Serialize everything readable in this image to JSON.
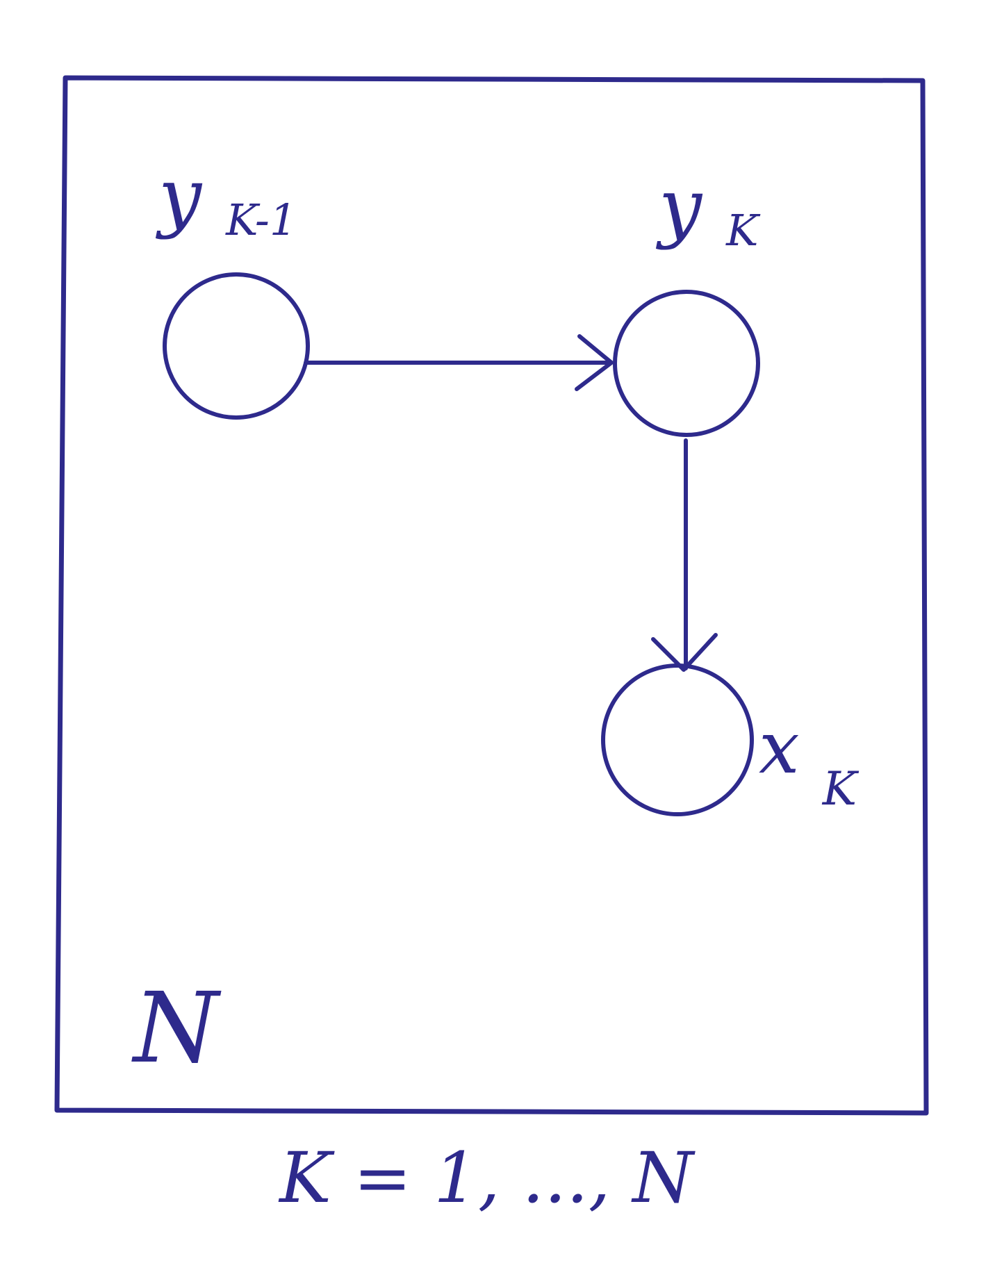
{
  "colors": {
    "ink": "#2e2a8c",
    "background": "#ffffff"
  },
  "nodes": [
    {
      "id": "y_prev",
      "label_main": "y",
      "label_sub": "K-1"
    },
    {
      "id": "y_k",
      "label_main": "y",
      "label_sub": "K"
    },
    {
      "id": "x_k",
      "label_main": "x",
      "label_sub": "K"
    }
  ],
  "edges": [
    {
      "from": "y_prev",
      "to": "y_k"
    },
    {
      "from": "y_k",
      "to": "x_k"
    }
  ],
  "plate": {
    "label": "N",
    "index": "K = 1, ..., N"
  }
}
